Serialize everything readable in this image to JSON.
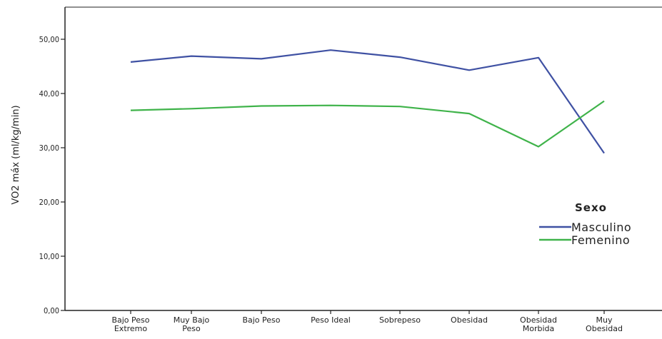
{
  "chart_data": {
    "type": "line",
    "title": "",
    "xlabel": "",
    "ylabel": "VO2 máx (ml/kg/min)",
    "ylim": [
      0,
      50
    ],
    "yticks": [
      "0,00",
      "10,00",
      "20,00",
      "30,00",
      "40,00",
      "50,00"
    ],
    "ytick_values": [
      0,
      10,
      20,
      30,
      40,
      50
    ],
    "grid": false,
    "legend_position": "right",
    "categories": [
      "Bajo Peso Extremo",
      "Muy Bajo Peso",
      "Bajo Peso",
      "Peso Ideal",
      "Sobrepeso",
      "Obesidad",
      "Obesidad Morbida",
      "Muy Obesidad"
    ],
    "legend_title": "Sexo",
    "series": [
      {
        "name": "Masculino",
        "color": "#3f51a3",
        "values": [
          45.8,
          46.9,
          46.4,
          48.0,
          46.7,
          44.3,
          46.6,
          29.0
        ]
      },
      {
        "name": "Femenino",
        "color": "#3fb34a",
        "values": [
          36.9,
          37.2,
          37.7,
          37.8,
          37.6,
          36.3,
          30.2,
          38.6
        ]
      }
    ]
  }
}
